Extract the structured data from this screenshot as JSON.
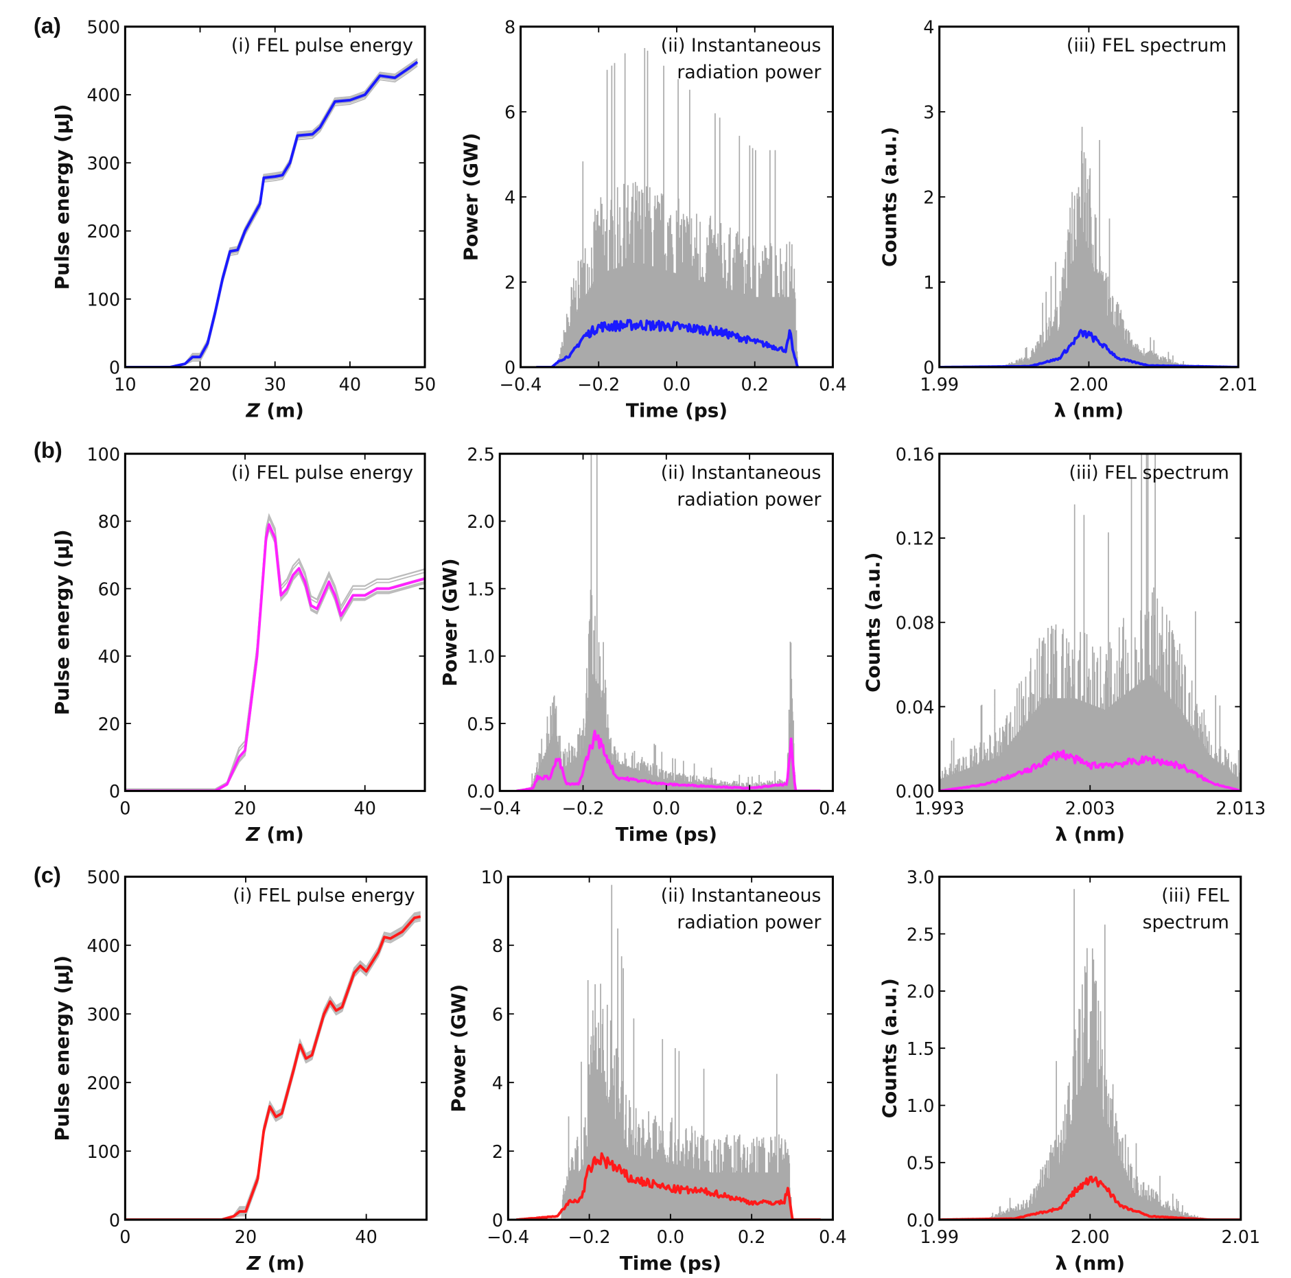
{
  "row_labels": [
    "(a)",
    "(b)",
    "(c)"
  ],
  "colors": {
    "blue": "#1a1aff",
    "magenta": "#ff22ff",
    "red": "#ff1a1a",
    "gray": "#aaaaaa"
  },
  "chart_data": [
    {
      "id": "a-i",
      "type": "line",
      "title": [
        "(i) FEL pulse energy"
      ],
      "xlabel_main": "Z",
      "xlabel_unit": " (m)",
      "ylabel": "Pulse energy (µJ)",
      "xlim": [
        10,
        50
      ],
      "ylim": [
        0,
        500
      ],
      "xticks": [
        "10",
        "20",
        "30",
        "40",
        "50"
      ],
      "xtick_values": [
        10,
        20,
        30,
        40,
        50
      ],
      "yticks": [
        "0",
        "100",
        "200",
        "300",
        "400",
        "500"
      ],
      "ytick_values": [
        0,
        100,
        200,
        300,
        400,
        500
      ],
      "color": "blue",
      "band": 6,
      "mean": [
        [
          10,
          0
        ],
        [
          16,
          0
        ],
        [
          18,
          5
        ],
        [
          19,
          15
        ],
        [
          20,
          15
        ],
        [
          21,
          35
        ],
        [
          22,
          80
        ],
        [
          23,
          130
        ],
        [
          24,
          170
        ],
        [
          25,
          172
        ],
        [
          26,
          200
        ],
        [
          27,
          220
        ],
        [
          28,
          240
        ],
        [
          28.5,
          278
        ],
        [
          30,
          280
        ],
        [
          31,
          282
        ],
        [
          32,
          300
        ],
        [
          33,
          340
        ],
        [
          35,
          342
        ],
        [
          36,
          352
        ],
        [
          38,
          390
        ],
        [
          40,
          392
        ],
        [
          42,
          400
        ],
        [
          44,
          428
        ],
        [
          46,
          425
        ],
        [
          48,
          440
        ],
        [
          49,
          448
        ]
      ]
    },
    {
      "id": "a-ii",
      "type": "line",
      "title": [
        "(ii) Instantaneous",
        "radiation power"
      ],
      "xlabel_main": "Time (ps)",
      "xlabel_unit": "",
      "ylabel": "Power (GW)",
      "xlim": [
        -0.4,
        0.4
      ],
      "ylim": [
        0,
        8
      ],
      "xticks": [
        "−0.4",
        "−0.2",
        "0.0",
        "0.2",
        "0.4"
      ],
      "xtick_values": [
        -0.4,
        -0.2,
        0,
        0.2,
        0.4
      ],
      "yticks": [
        "0",
        "2",
        "4",
        "6",
        "8"
      ],
      "ytick_values": [
        0,
        2,
        4,
        6,
        8
      ],
      "color": "blue",
      "mean": [
        [
          -0.36,
          0
        ],
        [
          -0.32,
          0
        ],
        [
          -0.3,
          0.15
        ],
        [
          -0.27,
          0.3
        ],
        [
          -0.24,
          0.7
        ],
        [
          -0.2,
          0.95
        ],
        [
          -0.1,
          1.0
        ],
        [
          0,
          0.95
        ],
        [
          0.1,
          0.85
        ],
        [
          0.2,
          0.6
        ],
        [
          0.28,
          0.4
        ],
        [
          0.29,
          0.8
        ],
        [
          0.3,
          0.3
        ],
        [
          0.31,
          0
        ]
      ],
      "envelope": [
        [
          -0.31,
          0
        ],
        [
          -0.3,
          0.3
        ],
        [
          -0.27,
          2
        ],
        [
          -0.2,
          4
        ],
        [
          -0.1,
          4.5
        ],
        [
          0,
          4
        ],
        [
          0.1,
          3.5
        ],
        [
          0.2,
          3
        ],
        [
          0.3,
          3
        ],
        [
          0.31,
          0
        ]
      ]
    },
    {
      "id": "a-iii",
      "type": "line",
      "title": [
        "(iii) FEL spectrum"
      ],
      "xlabel_main": "λ (nm)",
      "xlabel_unit": "",
      "ylabel": "Counts (a.u.)",
      "xlim": [
        1.99,
        2.01
      ],
      "ylim": [
        0,
        4
      ],
      "xticks": [
        "1.99",
        "2.00",
        "2.01"
      ],
      "xtick_values": [
        1.99,
        2.0,
        2.01
      ],
      "yticks": [
        "0",
        "1",
        "2",
        "3",
        "4"
      ],
      "ytick_values": [
        0,
        1,
        2,
        3,
        4
      ],
      "color": "blue",
      "mean": [
        [
          1.99,
          0
        ],
        [
          1.996,
          0.01
        ],
        [
          1.998,
          0.1
        ],
        [
          1.999,
          0.3
        ],
        [
          1.9995,
          0.4
        ],
        [
          2.0,
          0.38
        ],
        [
          2.001,
          0.25
        ],
        [
          2.002,
          0.1
        ],
        [
          2.004,
          0.02
        ],
        [
          2.01,
          0
        ]
      ],
      "envelope": [
        [
          1.994,
          0
        ],
        [
          1.996,
          0.15
        ],
        [
          1.998,
          0.8
        ],
        [
          1.9995,
          3.0
        ],
        [
          2.0,
          2.5
        ],
        [
          2.001,
          1.2
        ],
        [
          2.003,
          0.3
        ],
        [
          2.006,
          0.05
        ],
        [
          2.008,
          0
        ]
      ]
    },
    {
      "id": "b-i",
      "type": "line",
      "title": [
        "(i) FEL pulse energy"
      ],
      "xlabel_main": "Z",
      "xlabel_unit": " (m)",
      "ylabel": "Pulse energy (µJ)",
      "xlim": [
        0,
        50
      ],
      "ylim": [
        0,
        100
      ],
      "xticks": [
        "0",
        "20",
        "40"
      ],
      "xtick_values": [
        0,
        20,
        40
      ],
      "yticks": [
        "0",
        "20",
        "40",
        "60",
        "80",
        "100"
      ],
      "ytick_values": [
        0,
        20,
        40,
        60,
        80,
        100
      ],
      "color": "magenta",
      "band": 3,
      "mean": [
        [
          0,
          0
        ],
        [
          15,
          0
        ],
        [
          17,
          2
        ],
        [
          19,
          10
        ],
        [
          20,
          12
        ],
        [
          22,
          40
        ],
        [
          23.5,
          75
        ],
        [
          24,
          79
        ],
        [
          25,
          75
        ],
        [
          26,
          58
        ],
        [
          27,
          60
        ],
        [
          28,
          64
        ],
        [
          29,
          66
        ],
        [
          30,
          62
        ],
        [
          31,
          55
        ],
        [
          32,
          54
        ],
        [
          33,
          58
        ],
        [
          34,
          62
        ],
        [
          35,
          58
        ],
        [
          36,
          52
        ],
        [
          37,
          55
        ],
        [
          38,
          58
        ],
        [
          40,
          58
        ],
        [
          42,
          60
        ],
        [
          44,
          60
        ],
        [
          46,
          61
        ],
        [
          48,
          62
        ],
        [
          50,
          63
        ]
      ]
    },
    {
      "id": "b-ii",
      "type": "line",
      "title": [
        "(ii) Instantaneous",
        "radiation power"
      ],
      "xlabel_main": "Time (ps)",
      "xlabel_unit": "",
      "ylabel": "Power (GW)",
      "xlim": [
        -0.4,
        0.4
      ],
      "ylim": [
        0,
        2.5
      ],
      "xticks": [
        "−0.4",
        "−0.2",
        "0.0",
        "0.2",
        "0.4"
      ],
      "xtick_values": [
        -0.4,
        -0.2,
        0,
        0.2,
        0.4
      ],
      "yticks": [
        "0.0",
        "0.5",
        "1.0",
        "1.5",
        "2.0",
        "2.5"
      ],
      "ytick_values": [
        0,
        0.5,
        1,
        1.5,
        2,
        2.5
      ],
      "color": "magenta",
      "mean": [
        [
          -0.36,
          0
        ],
        [
          -0.32,
          0.02
        ],
        [
          -0.31,
          0.1
        ],
        [
          -0.28,
          0.1
        ],
        [
          -0.26,
          0.25
        ],
        [
          -0.24,
          0.05
        ],
        [
          -0.21,
          0.05
        ],
        [
          -0.19,
          0.25
        ],
        [
          -0.17,
          0.42
        ],
        [
          -0.15,
          0.3
        ],
        [
          -0.12,
          0.1
        ],
        [
          0,
          0.05
        ],
        [
          0.2,
          0.02
        ],
        [
          0.29,
          0.05
        ],
        [
          0.3,
          0.35
        ],
        [
          0.31,
          0
        ],
        [
          0.37,
          0
        ]
      ],
      "envelope": [
        [
          -0.33,
          0
        ],
        [
          -0.32,
          0.1
        ],
        [
          -0.27,
          0.8
        ],
        [
          -0.25,
          0.3
        ],
        [
          -0.2,
          0.5
        ],
        [
          -0.18,
          1.6
        ],
        [
          -0.16,
          1.4
        ],
        [
          -0.13,
          0.4
        ],
        [
          0,
          0.15
        ],
        [
          0.2,
          0.06
        ],
        [
          0.29,
          0.1
        ],
        [
          0.3,
          1.4
        ],
        [
          0.31,
          0
        ]
      ]
    },
    {
      "id": "b-iii",
      "type": "line",
      "title": [
        "(iii) FEL spectrum"
      ],
      "xlabel_main": "λ (nm)",
      "xlabel_unit": "",
      "ylabel": "Counts (a.u.)",
      "xlim": [
        1.993,
        2.013
      ],
      "ylim": [
        0,
        0.16
      ],
      "xticks": [
        "1.993",
        "2.003",
        "2.013"
      ],
      "xtick_values": [
        1.993,
        2.003,
        2.013
      ],
      "yticks": [
        "0.00",
        "0.04",
        "0.08",
        "0.12",
        "0.16"
      ],
      "ytick_values": [
        0,
        0.04,
        0.08,
        0.12,
        0.16
      ],
      "color": "magenta",
      "mean": [
        [
          1.993,
          0
        ],
        [
          1.996,
          0.003
        ],
        [
          1.999,
          0.01
        ],
        [
          2.001,
          0.018
        ],
        [
          2.002,
          0.015
        ],
        [
          2.003,
          0.012
        ],
        [
          2.005,
          0.013
        ],
        [
          2.007,
          0.015
        ],
        [
          2.009,
          0.012
        ],
        [
          2.011,
          0.004
        ],
        [
          2.013,
          0
        ]
      ],
      "envelope": [
        [
          1.993,
          0.01
        ],
        [
          1.997,
          0.03
        ],
        [
          2.0,
          0.08
        ],
        [
          2.002,
          0.08
        ],
        [
          2.004,
          0.07
        ],
        [
          2.007,
          0.1
        ],
        [
          2.009,
          0.07
        ],
        [
          2.011,
          0.03
        ],
        [
          2.013,
          0.01
        ]
      ]
    },
    {
      "id": "c-i",
      "type": "line",
      "title": [
        "(i) FEL pulse energy"
      ],
      "xlabel_main": "Z",
      "xlabel_unit": " (m)",
      "ylabel": "Pulse energy (µJ)",
      "xlim": [
        0,
        50
      ],
      "ylim": [
        0,
        500
      ],
      "xticks": [
        "0",
        "20",
        "40"
      ],
      "xtick_values": [
        0,
        20,
        40
      ],
      "yticks": [
        "0",
        "100",
        "200",
        "300",
        "400",
        "500"
      ],
      "ytick_values": [
        0,
        100,
        200,
        300,
        400,
        500
      ],
      "color": "red",
      "band": 7,
      "mean": [
        [
          0,
          0
        ],
        [
          16,
          0
        ],
        [
          18,
          5
        ],
        [
          19,
          12
        ],
        [
          20,
          12
        ],
        [
          22,
          60
        ],
        [
          23,
          130
        ],
        [
          24,
          165
        ],
        [
          25,
          150
        ],
        [
          26,
          155
        ],
        [
          28,
          220
        ],
        [
          29,
          255
        ],
        [
          30,
          235
        ],
        [
          31,
          240
        ],
        [
          33,
          300
        ],
        [
          34,
          318
        ],
        [
          35,
          305
        ],
        [
          36,
          310
        ],
        [
          38,
          360
        ],
        [
          39,
          370
        ],
        [
          40,
          362
        ],
        [
          42,
          390
        ],
        [
          43,
          412
        ],
        [
          44,
          410
        ],
        [
          46,
          420
        ],
        [
          48,
          440
        ],
        [
          49,
          442
        ]
      ]
    },
    {
      "id": "c-ii",
      "type": "line",
      "title": [
        "(ii) Instantaneous",
        "radiation power"
      ],
      "xlabel_main": "Time (ps)",
      "xlabel_unit": "",
      "ylabel": "Power (GW)",
      "xlim": [
        -0.4,
        0.4
      ],
      "ylim": [
        0,
        10
      ],
      "xticks": [
        "−0.4",
        "−0.2",
        "0.0",
        "0.2",
        "0.4"
      ],
      "xtick_values": [
        -0.4,
        -0.2,
        0,
        0.2,
        0.4
      ],
      "yticks": [
        "0",
        "2",
        "4",
        "6",
        "8",
        "10"
      ],
      "ytick_values": [
        0,
        2,
        4,
        6,
        8,
        10
      ],
      "color": "red",
      "mean": [
        [
          -0.38,
          0
        ],
        [
          -0.28,
          0.1
        ],
        [
          -0.25,
          0.5
        ],
        [
          -0.22,
          0.6
        ],
        [
          -0.2,
          1.5
        ],
        [
          -0.17,
          1.8
        ],
        [
          -0.1,
          1.2
        ],
        [
          0,
          0.9
        ],
        [
          0.1,
          0.8
        ],
        [
          0.2,
          0.5
        ],
        [
          0.28,
          0.5
        ],
        [
          0.29,
          1
        ],
        [
          0.3,
          0
        ],
        [
          0.37,
          0
        ]
      ],
      "envelope": [
        [
          -0.27,
          0
        ],
        [
          -0.26,
          1.5
        ],
        [
          -0.21,
          3
        ],
        [
          -0.18,
          8
        ],
        [
          -0.15,
          6
        ],
        [
          -0.1,
          3.5
        ],
        [
          0,
          3
        ],
        [
          0.1,
          2.5
        ],
        [
          0.2,
          2.5
        ],
        [
          0.29,
          2.5
        ],
        [
          0.3,
          0
        ]
      ]
    },
    {
      "id": "c-iii",
      "type": "line",
      "title": [
        "(iii) FEL",
        "spectrum"
      ],
      "xlabel_main": "λ (nm)",
      "xlabel_unit": "",
      "ylabel": "Counts (a.u.)",
      "xlim": [
        1.99,
        2.01
      ],
      "ylim": [
        0,
        3
      ],
      "xticks": [
        "1.99",
        "2.00",
        "2.01"
      ],
      "xtick_values": [
        1.99,
        2.0,
        2.01
      ],
      "yticks": [
        "0.0",
        "0.5",
        "1.0",
        "1.5",
        "2.0",
        "2.5",
        "3.0"
      ],
      "ytick_values": [
        0,
        0.5,
        1,
        1.5,
        2,
        2.5,
        3
      ],
      "color": "red",
      "mean": [
        [
          1.99,
          0
        ],
        [
          1.995,
          0.01
        ],
        [
          1.998,
          0.1
        ],
        [
          1.999,
          0.25
        ],
        [
          2.0,
          0.35
        ],
        [
          2.001,
          0.3
        ],
        [
          2.002,
          0.12
        ],
        [
          2.004,
          0.03
        ],
        [
          2.008,
          0
        ],
        [
          2.01,
          0
        ]
      ],
      "envelope": [
        [
          1.993,
          0
        ],
        [
          1.996,
          0.2
        ],
        [
          1.998,
          0.9
        ],
        [
          2.0,
          2.6
        ],
        [
          2.001,
          1.5
        ],
        [
          2.003,
          0.4
        ],
        [
          2.006,
          0.08
        ],
        [
          2.008,
          0
        ]
      ]
    }
  ]
}
